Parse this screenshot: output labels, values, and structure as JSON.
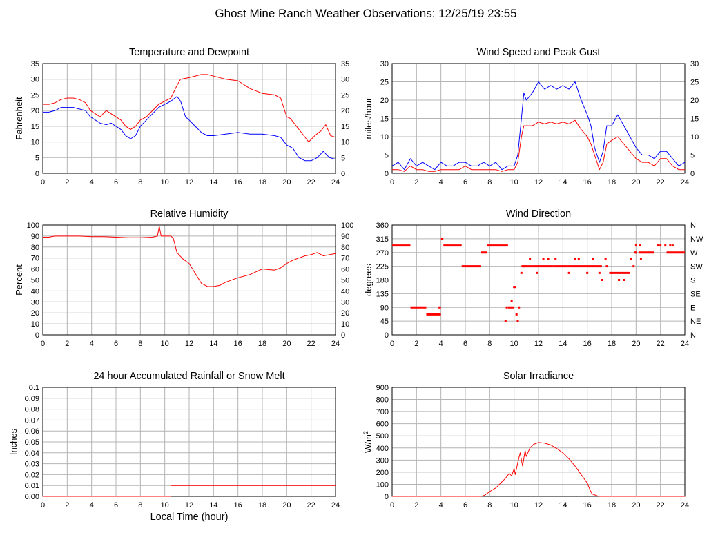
{
  "page": {
    "title": "Ghost Mine Ranch Weather Observations: 12/25/19 23:55"
  },
  "colors": {
    "red": "#ff0000",
    "blue": "#0000ff",
    "grid": "#b4b4b4"
  },
  "chart_data": [
    {
      "id": "temp",
      "type": "line",
      "title": "Temperature and Dewpoint",
      "xlabel": "",
      "ylabel": "Fahrenheit",
      "xlim": [
        0,
        24
      ],
      "xticks": [
        0,
        2,
        4,
        6,
        8,
        10,
        12,
        14,
        16,
        18,
        20,
        22,
        24
      ],
      "ylim": [
        0,
        35
      ],
      "yticks": [
        0,
        5,
        10,
        15,
        20,
        25,
        30,
        35
      ],
      "right_ticks": [
        "0",
        "5",
        "10",
        "15",
        "20",
        "25",
        "30",
        "35"
      ],
      "series": [
        {
          "color": "#ff0000",
          "x": [
            0,
            0.5,
            1,
            1.5,
            2,
            2.5,
            3,
            3.5,
            3.9,
            4.3,
            4.7,
            5.2,
            5.6,
            6,
            6.4,
            6.8,
            7.2,
            7.6,
            8,
            8.5,
            9,
            9.5,
            10,
            10.5,
            11,
            11.3,
            12,
            13,
            13.5,
            14,
            15,
            16,
            17,
            18,
            19,
            19.5,
            20,
            20.3,
            20.8,
            21.4,
            21.8,
            22.3,
            22.8,
            23.2,
            23.6,
            24
          ],
          "y": [
            22,
            22,
            22.5,
            23.5,
            24,
            24,
            23.5,
            22.5,
            20,
            19,
            18,
            20,
            19,
            18,
            17,
            15,
            14,
            15,
            17,
            18,
            20,
            22,
            23,
            24,
            28,
            30,
            30.5,
            31.5,
            31.5,
            31,
            30,
            29.5,
            27,
            25.5,
            25,
            24,
            18,
            17.5,
            15,
            12,
            10,
            12,
            13.5,
            15.5,
            12,
            11.5
          ]
        },
        {
          "color": "#0000ff",
          "x": [
            0,
            0.5,
            1,
            1.5,
            2,
            2.5,
            3,
            3.5,
            3.9,
            4.3,
            4.7,
            5.2,
            5.6,
            6,
            6.4,
            6.8,
            7.2,
            7.6,
            8,
            8.5,
            9,
            9.5,
            10,
            10.5,
            11,
            11.3,
            11.7,
            12,
            12.5,
            13,
            13.5,
            14,
            15,
            16,
            17,
            18,
            19,
            19.5,
            20,
            20.5,
            21,
            21.5,
            22,
            22.5,
            23,
            23.5,
            24
          ],
          "y": [
            19.5,
            19.5,
            20,
            21,
            21,
            21,
            20.5,
            20,
            18,
            17,
            16,
            15.5,
            16,
            15,
            14,
            12,
            11,
            12,
            15,
            17,
            19,
            21,
            22,
            23,
            24.5,
            23,
            18,
            17,
            15,
            13,
            12,
            12,
            12.5,
            13,
            12.5,
            12.5,
            12,
            11.5,
            9,
            8,
            5,
            4,
            4,
            5,
            7,
            5,
            4.5
          ]
        }
      ]
    },
    {
      "id": "wind",
      "type": "line",
      "title": "Wind Speed and Peak Gust",
      "xlabel": "",
      "ylabel": "miles/hour",
      "xlim": [
        0,
        24
      ],
      "xticks": [
        0,
        2,
        4,
        6,
        8,
        10,
        12,
        14,
        16,
        18,
        20,
        22,
        24
      ],
      "ylim": [
        0,
        30
      ],
      "yticks": [
        0,
        5,
        10,
        15,
        20,
        25,
        30
      ],
      "right_ticks": [
        "0",
        "5",
        "10",
        "15",
        "20",
        "25",
        "30"
      ],
      "series": [
        {
          "color": "#0000ff",
          "x": [
            0,
            0.5,
            1,
            1.5,
            2,
            2.5,
            3,
            3.5,
            4,
            4.5,
            5,
            5.5,
            6,
            6.5,
            7,
            7.5,
            8,
            8.5,
            9,
            9.5,
            10,
            10.3,
            10.6,
            10.8,
            11,
            11.5,
            12,
            12.5,
            13,
            13.5,
            14,
            14.5,
            15,
            15.5,
            16,
            16.3,
            16.6,
            17,
            17.3,
            17.6,
            18,
            18.5,
            19,
            19.5,
            20,
            20.5,
            21,
            21.5,
            22,
            22.5,
            23,
            23.5,
            24
          ],
          "y": [
            2,
            3,
            1,
            4,
            2,
            3,
            2,
            1,
            3,
            2,
            2,
            3,
            3,
            2,
            2,
            3,
            2,
            3,
            1,
            2,
            2,
            5,
            15,
            22,
            20,
            22,
            25,
            23,
            24,
            23,
            24,
            23,
            25,
            20,
            16,
            13,
            7,
            3,
            6,
            13,
            13,
            16,
            13,
            10,
            7,
            5,
            5,
            4,
            6,
            6,
            4,
            2,
            3
          ]
        },
        {
          "color": "#ff0000",
          "x": [
            0,
            0.5,
            1,
            1.5,
            2,
            2.5,
            3,
            3.5,
            4,
            4.5,
            5,
            5.5,
            6,
            6.5,
            7,
            7.5,
            8,
            8.5,
            9,
            9.5,
            10,
            10.3,
            10.6,
            10.8,
            11,
            11.5,
            12,
            12.5,
            13,
            13.5,
            14,
            14.5,
            15,
            15.5,
            16,
            16.3,
            16.6,
            17,
            17.3,
            17.6,
            18,
            18.5,
            19,
            19.5,
            20,
            20.5,
            21,
            21.5,
            22,
            22.5,
            23,
            23.5,
            24
          ],
          "y": [
            1,
            1,
            0.5,
            2,
            1,
            1,
            0.5,
            0.5,
            1,
            1,
            1,
            1,
            2,
            1,
            1,
            1,
            1,
            1,
            0.5,
            1,
            1,
            3,
            10,
            13,
            13,
            13,
            14,
            13.5,
            14,
            13.5,
            14,
            13.5,
            14.5,
            12,
            10,
            8,
            5,
            1,
            3,
            8,
            9,
            10,
            8,
            6,
            4,
            3,
            3,
            2,
            4,
            4,
            2,
            1,
            1
          ]
        }
      ]
    },
    {
      "id": "rh",
      "type": "line",
      "title": "Relative Humidity",
      "xlabel": "",
      "ylabel": "Percent",
      "xlim": [
        0,
        24
      ],
      "xticks": [
        0,
        2,
        4,
        6,
        8,
        10,
        12,
        14,
        16,
        18,
        20,
        22,
        24
      ],
      "ylim": [
        0,
        100
      ],
      "yticks": [
        0,
        10,
        20,
        30,
        40,
        50,
        60,
        70,
        80,
        90,
        100
      ],
      "right_ticks": [
        "0",
        "10",
        "20",
        "30",
        "40",
        "50",
        "60",
        "70",
        "80",
        "90",
        "100"
      ],
      "series": [
        {
          "color": "#ff0000",
          "x": [
            0,
            0.5,
            1,
            2,
            3,
            4,
            5,
            6,
            7,
            8,
            9,
            9.4,
            9.55,
            9.7,
            10,
            10.5,
            10.7,
            11,
            11.5,
            12,
            12.5,
            13,
            13.5,
            14,
            14.5,
            15,
            16,
            17,
            18,
            19,
            19.5,
            20,
            20.5,
            21,
            21.5,
            22,
            22.5,
            23,
            23.5,
            24
          ],
          "y": [
            89,
            89,
            90,
            90,
            90,
            89.5,
            89.5,
            89,
            88.5,
            88.5,
            89,
            90,
            99,
            90,
            90,
            90,
            88,
            75,
            69,
            65,
            56,
            47,
            44,
            44,
            45,
            48,
            52,
            55,
            60,
            59,
            61,
            65,
            68,
            70,
            72,
            73,
            75,
            72,
            73,
            74
          ]
        }
      ]
    },
    {
      "id": "dir",
      "type": "scatter",
      "title": "Wind Direction",
      "xlabel": "",
      "ylabel": "degrees",
      "xlim": [
        0,
        24
      ],
      "xticks": [
        0,
        2,
        4,
        6,
        8,
        10,
        12,
        14,
        16,
        18,
        20,
        22,
        24
      ],
      "ylim": [
        0,
        360
      ],
      "yticks": [
        0,
        45,
        90,
        135,
        180,
        225,
        270,
        315,
        360
      ],
      "right_ticks": [
        "N",
        "NE",
        "E",
        "SE",
        "S",
        "SW",
        "W",
        "NW",
        "N"
      ],
      "segments": [
        {
          "x": [
            0,
            1.5
          ],
          "y": 293
        },
        {
          "x": [
            1.5,
            2.8
          ],
          "y": 90
        },
        {
          "x": [
            2.8,
            4.0
          ],
          "y": 67
        },
        {
          "x": [
            3.8,
            4.0
          ],
          "y": 90
        },
        {
          "x": [
            4.0,
            4.2
          ],
          "y": 315
        },
        {
          "x": [
            4.2,
            5.7
          ],
          "y": 293
        },
        {
          "x": [
            5.7,
            7.3
          ],
          "y": 225
        },
        {
          "x": [
            7.3,
            7.8
          ],
          "y": 270
        },
        {
          "x": [
            7.8,
            9.5
          ],
          "y": 293
        },
        {
          "x": [
            9.5,
            10.0
          ],
          "y": 90
        },
        {
          "x": [
            10.6,
            11.5
          ],
          "y": 225
        },
        {
          "x": [
            11.5,
            12.0
          ],
          "y": 225
        },
        {
          "x": [
            12.0,
            13.2
          ],
          "y": 225
        },
        {
          "x": [
            13.2,
            14.4
          ],
          "y": 225
        },
        {
          "x": [
            14.4,
            15.8
          ],
          "y": 225
        },
        {
          "x": [
            15.8,
            17.2
          ],
          "y": 225
        },
        {
          "x": [
            17.8,
            19.5
          ],
          "y": 203
        },
        {
          "x": [
            20.2,
            21.5
          ],
          "y": 270
        },
        {
          "x": [
            22.5,
            24.0
          ],
          "y": 270
        }
      ],
      "points": [
        {
          "x": 9.3,
          "y": 45
        },
        {
          "x": 9.4,
          "y": 90
        },
        {
          "x": 9.8,
          "y": 112
        },
        {
          "x": 10.0,
          "y": 157
        },
        {
          "x": 10.1,
          "y": 157
        },
        {
          "x": 10.2,
          "y": 67
        },
        {
          "x": 10.3,
          "y": 45
        },
        {
          "x": 10.4,
          "y": 90
        },
        {
          "x": 10.6,
          "y": 203
        },
        {
          "x": 10.8,
          "y": 225
        },
        {
          "x": 11.3,
          "y": 248
        },
        {
          "x": 11.9,
          "y": 203
        },
        {
          "x": 12.4,
          "y": 248
        },
        {
          "x": 12.8,
          "y": 248
        },
        {
          "x": 13.4,
          "y": 248
        },
        {
          "x": 14.5,
          "y": 203
        },
        {
          "x": 15.0,
          "y": 248
        },
        {
          "x": 15.3,
          "y": 248
        },
        {
          "x": 16.0,
          "y": 203
        },
        {
          "x": 16.5,
          "y": 248
        },
        {
          "x": 17.0,
          "y": 203
        },
        {
          "x": 17.2,
          "y": 180
        },
        {
          "x": 17.5,
          "y": 248
        },
        {
          "x": 17.6,
          "y": 225
        },
        {
          "x": 18.6,
          "y": 180
        },
        {
          "x": 19.0,
          "y": 180
        },
        {
          "x": 19.6,
          "y": 248
        },
        {
          "x": 19.8,
          "y": 225
        },
        {
          "x": 20.0,
          "y": 293
        },
        {
          "x": 20.3,
          "y": 293
        },
        {
          "x": 20.4,
          "y": 248
        },
        {
          "x": 21.8,
          "y": 293
        },
        {
          "x": 22.0,
          "y": 293
        },
        {
          "x": 22.4,
          "y": 293
        },
        {
          "x": 22.8,
          "y": 293
        },
        {
          "x": 23.0,
          "y": 293
        },
        {
          "x": 20.0,
          "y": 270
        },
        {
          "x": 19.9,
          "y": 270
        }
      ]
    },
    {
      "id": "rain",
      "type": "line",
      "title": "24 hour Accumulated Rainfall or Snow Melt",
      "xlabel": "Local Time (hour)",
      "ylabel": "Inches",
      "xlim": [
        0,
        24
      ],
      "xticks": [
        0,
        2,
        4,
        6,
        8,
        10,
        12,
        14,
        16,
        18,
        20,
        22,
        24
      ],
      "ylim": [
        0,
        0.1
      ],
      "yticks": [
        0,
        0.01,
        0.02,
        0.03,
        0.04,
        0.05,
        0.06,
        0.07,
        0.08,
        0.09,
        0.1
      ],
      "ytick_labels": [
        "0.00",
        "0.01",
        "0.02",
        "0.03",
        "0.04",
        "0.05",
        "0.06",
        "0.07",
        "0.08",
        "0.09",
        "0.1"
      ],
      "series": [
        {
          "color": "#ff0000",
          "x": [
            0,
            10.5,
            10.5,
            24
          ],
          "y": [
            0,
            0,
            0.01,
            0.01
          ]
        }
      ]
    },
    {
      "id": "solar",
      "type": "line",
      "title": "Solar Irradiance",
      "xlabel": "",
      "ylabel": "W/m",
      "ylabel_sup": "2",
      "xlim": [
        0,
        24
      ],
      "xticks": [
        0,
        2,
        4,
        6,
        8,
        10,
        12,
        14,
        16,
        18,
        20,
        22,
        24
      ],
      "ylim": [
        0,
        900
      ],
      "yticks": [
        0,
        100,
        200,
        300,
        400,
        500,
        600,
        700,
        800,
        900
      ],
      "series": [
        {
          "color": "#ff0000",
          "x": [
            0,
            7.3,
            7.6,
            8,
            8.5,
            9,
            9.3,
            9.6,
            9.8,
            10,
            10.1,
            10.3,
            10.5,
            10.6,
            10.7,
            10.9,
            11,
            11.3,
            11.6,
            12,
            12.5,
            13,
            13.5,
            14,
            14.5,
            15,
            15.5,
            16,
            16.2,
            16.4,
            16.8,
            17,
            24
          ],
          "y": [
            0,
            0,
            10,
            40,
            70,
            120,
            150,
            190,
            170,
            230,
            180,
            280,
            360,
            300,
            250,
            380,
            330,
            400,
            430,
            445,
            440,
            425,
            395,
            360,
            310,
            250,
            180,
            110,
            60,
            20,
            5,
            0,
            0
          ]
        }
      ]
    }
  ]
}
